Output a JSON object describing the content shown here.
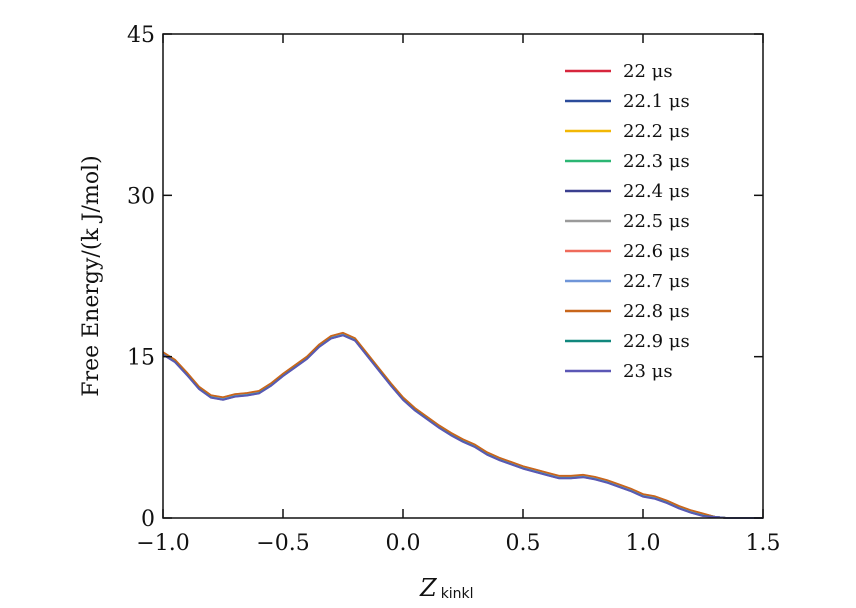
{
  "chart_data": {
    "type": "line",
    "title": "",
    "ylabel": "Free Energy/(k J/mol)",
    "xlabel_main": "Z",
    "xlabel_sub": "kinkl",
    "xlim": [
      -1.0,
      1.5
    ],
    "ylim": [
      0,
      45
    ],
    "xticks": [
      -1.0,
      -0.5,
      0.0,
      0.5,
      1.0,
      1.5
    ],
    "xtick_labels": [
      "−1.0",
      "−0.5",
      "0.0",
      "0.5",
      "1.0",
      "1.5"
    ],
    "yticks": [
      0,
      15,
      30,
      45
    ],
    "ytick_labels": [
      "0",
      "15",
      "30",
      "45"
    ],
    "grid": false,
    "legend_position": "top-right",
    "x": [
      -1.0,
      -0.95,
      -0.9,
      -0.85,
      -0.8,
      -0.75,
      -0.7,
      -0.65,
      -0.6,
      -0.55,
      -0.5,
      -0.45,
      -0.4,
      -0.35,
      -0.3,
      -0.25,
      -0.2,
      -0.15,
      -0.1,
      -0.05,
      0.0,
      0.05,
      0.1,
      0.15,
      0.2,
      0.25,
      0.3,
      0.35,
      0.4,
      0.45,
      0.5,
      0.55,
      0.6,
      0.65,
      0.7,
      0.75,
      0.8,
      0.85,
      0.9,
      0.95,
      1.0,
      1.05,
      1.1,
      1.15,
      1.2,
      1.25,
      1.3,
      1.35,
      1.4,
      1.45,
      1.5
    ],
    "base_values": [
      15.3,
      14.6,
      13.4,
      12.1,
      11.3,
      11.1,
      11.4,
      11.5,
      11.7,
      12.4,
      13.3,
      14.1,
      14.9,
      16.0,
      16.8,
      17.1,
      16.6,
      15.2,
      13.8,
      12.4,
      11.1,
      10.1,
      9.3,
      8.5,
      7.8,
      7.2,
      6.7,
      6.0,
      5.5,
      5.1,
      4.7,
      4.4,
      4.1,
      3.8,
      3.8,
      3.9,
      3.7,
      3.4,
      3.0,
      2.6,
      2.1,
      1.9,
      1.5,
      1.0,
      0.6,
      0.3,
      0.1,
      0.0,
      0.0,
      0.0,
      0.0
    ],
    "series": [
      {
        "name": "22 μs",
        "color": "#d7263d",
        "offset": 0.0
      },
      {
        "name": "22.1 μs",
        "color": "#2b4c9b",
        "offset": -0.05
      },
      {
        "name": "22.2 μs",
        "color": "#f2b705",
        "offset": 0.08
      },
      {
        "name": "22.3 μs",
        "color": "#2bb673",
        "offset": 0.03
      },
      {
        "name": "22.4 μs",
        "color": "#3b3f8f",
        "offset": -0.08
      },
      {
        "name": "22.5 μs",
        "color": "#9a9a9a",
        "offset": 0.05
      },
      {
        "name": "22.6 μs",
        "color": "#ef6b5b",
        "offset": 0.1
      },
      {
        "name": "22.7 μs",
        "color": "#6f95d8",
        "offset": -0.03
      },
      {
        "name": "22.8 μs",
        "color": "#c8661b",
        "offset": 0.12
      },
      {
        "name": "22.9 μs",
        "color": "#11877d",
        "offset": -0.1
      },
      {
        "name": "23 μs",
        "color": "#5b57b5",
        "offset": -0.12
      }
    ]
  }
}
